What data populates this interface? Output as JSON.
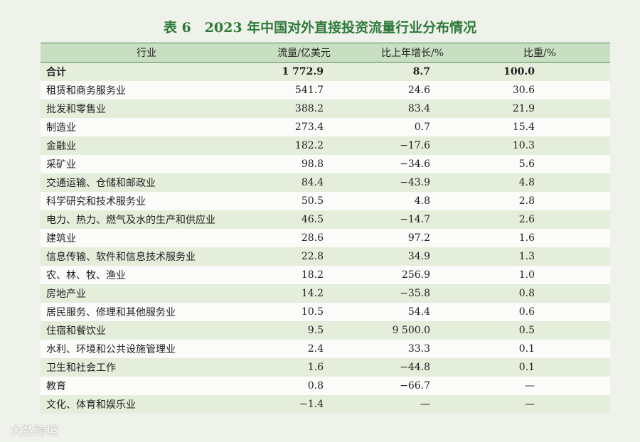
{
  "title": "表 6　2023 年中国对外直接投资流量行业分布情况",
  "table": {
    "header": [
      "行业",
      "流量/亿美元",
      "比上年增长/%",
      "比重/%"
    ],
    "rows": [
      [
        "合计",
        "1 772.9",
        "8.7",
        "100.0"
      ],
      [
        "租赁和商务服务业",
        "541.7",
        "24.6",
        "30.6"
      ],
      [
        "批发和零售业",
        "388.2",
        "83.4",
        "21.9"
      ],
      [
        "制造业",
        "273.4",
        "0.7",
        "15.4"
      ],
      [
        "金融业",
        "182.2",
        "−17.6",
        "10.3"
      ],
      [
        "采矿业",
        "98.8",
        "−34.6",
        "5.6"
      ],
      [
        "交通运输、仓储和邮政业",
        "84.4",
        "−43.9",
        "4.8"
      ],
      [
        "科学研究和技术服务业",
        "50.5",
        "4.8",
        "2.8"
      ],
      [
        "电力、热力、燃气及水的生产和供应业",
        "46.5",
        "−14.7",
        "2.6"
      ],
      [
        "建筑业",
        "28.6",
        "97.2",
        "1.6"
      ],
      [
        "信息传输、软件和信息技术服务业",
        "22.8",
        "34.9",
        "1.3"
      ],
      [
        "农、林、牧、渔业",
        "18.2",
        "256.9",
        "1.0"
      ],
      [
        "房地产业",
        "14.2",
        "−35.8",
        "0.8"
      ],
      [
        "居民服务、修理和其他服务业",
        "10.5",
        "54.4",
        "0.6"
      ],
      [
        "住宿和餐饮业",
        "9.5",
        "9 500.0",
        "0.5"
      ],
      [
        "水利、环境和公共设施管理业",
        "2.4",
        "33.3",
        "0.1"
      ],
      [
        "卫生和社会工作",
        "1.6",
        "−44.8",
        "0.1"
      ],
      [
        "教育",
        "0.8",
        "−66.7",
        "—"
      ],
      [
        "文化、体育和娱乐业",
        "−1.4",
        "—",
        "—"
      ]
    ]
  },
  "watermark": "大数跨境"
}
